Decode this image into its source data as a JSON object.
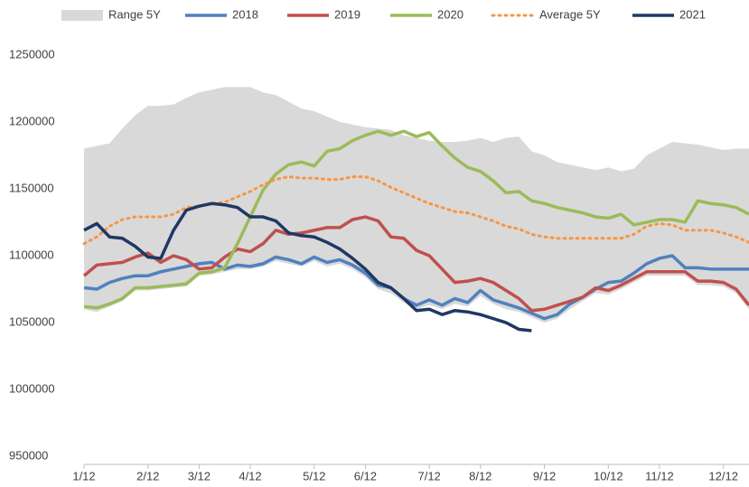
{
  "chart_data": {
    "type": "line",
    "categories": [
      "1/12",
      null,
      null,
      null,
      null,
      "2/12",
      null,
      null,
      null,
      "3/12",
      null,
      null,
      null,
      "4/12",
      null,
      null,
      null,
      null,
      "5/12",
      null,
      null,
      null,
      "6/12",
      null,
      null,
      null,
      null,
      "7/12",
      null,
      null,
      null,
      "8/12",
      null,
      null,
      null,
      null,
      "9/12",
      null,
      null,
      null,
      null,
      "10/12",
      null,
      null,
      null,
      "11/12",
      null,
      null,
      null,
      null,
      "12/12",
      null,
      null
    ],
    "ylim": [
      940000,
      1260000
    ],
    "yticks": [
      950000,
      1000000,
      1050000,
      1100000,
      1150000,
      1200000,
      1250000
    ],
    "legend": "top",
    "series": [
      {
        "name": "Range 5Y",
        "kind": "area",
        "color": "#d9d9d9",
        "values": [
          1180000,
          1182000,
          1184000,
          1195000,
          1205000,
          1212000,
          1212000,
          1213000,
          1218000,
          1222000,
          1224000,
          1226000,
          1226000,
          1226000,
          1222000,
          1220000,
          1215000,
          1210000,
          1208000,
          1204000,
          1200000,
          1198000,
          1196000,
          1195000,
          1194000,
          1190000,
          1188000,
          1186000,
          1185000,
          1185000,
          1186000,
          1188000,
          1185000,
          1188000,
          1189000,
          1178000,
          1175000,
          1170000,
          1168000,
          1166000,
          1164000,
          1166000,
          1163000,
          1165000,
          1175000,
          1180000,
          1185000,
          1184000,
          1183000,
          1181000,
          1179000,
          1180000,
          1180000
        ],
        "lower": [
          1060000,
          1058000,
          1062000,
          1066000,
          1074000,
          1074000,
          1075000,
          1076000,
          1077000,
          1085000,
          1086000,
          1088000,
          1090000,
          1090000,
          1092000,
          1096000,
          1094000,
          1092000,
          1096000,
          1092000,
          1094000,
          1090000,
          1084000,
          1075000,
          1072000,
          1065000,
          1060000,
          1063000,
          1060000,
          1064000,
          1062000,
          1070000,
          1064000,
          1060000,
          1058000,
          1054000,
          1050000,
          1053000,
          1060000,
          1066000,
          1072000,
          1071000,
          1075000,
          1080000,
          1085000,
          1085000,
          1085000,
          1085000,
          1078000,
          1078000,
          1077000,
          1072000,
          1060000
        ]
      },
      {
        "name": "2018",
        "kind": "line",
        "color": "#4f81bd",
        "values": [
          1076000,
          1075000,
          1080000,
          1083000,
          1085000,
          1085000,
          1088000,
          1090000,
          1092000,
          1094000,
          1095000,
          1090000,
          1093000,
          1092000,
          1094000,
          1099000,
          1097000,
          1094000,
          1099000,
          1095000,
          1097000,
          1093000,
          1087000,
          1078000,
          1076000,
          1068000,
          1063000,
          1067000,
          1063000,
          1068000,
          1065000,
          1074000,
          1067000,
          1064000,
          1061000,
          1057000,
          1053000,
          1056000,
          1064000,
          1069000,
          1075000,
          1080000,
          1081000,
          1087000,
          1094000,
          1098000,
          1100000,
          1091000,
          1091000,
          1090000,
          1090000,
          1090000,
          1090000
        ]
      },
      {
        "name": "2019",
        "kind": "line",
        "color": "#c0504d",
        "values": [
          1085000,
          1093000,
          1094000,
          1095000,
          1099000,
          1102000,
          1095000,
          1100000,
          1097000,
          1090000,
          1091000,
          1099000,
          1105000,
          1103000,
          1109000,
          1119000,
          1116000,
          1117000,
          1119000,
          1121000,
          1121000,
          1127000,
          1129000,
          1126000,
          1114000,
          1113000,
          1104000,
          1100000,
          1090000,
          1080000,
          1081000,
          1083000,
          1080000,
          1074000,
          1068000,
          1059000,
          1060000,
          1063000,
          1066000,
          1069000,
          1076000,
          1074000,
          1078000,
          1083000,
          1088000,
          1088000,
          1088000,
          1088000,
          1081000,
          1081000,
          1080000,
          1075000,
          1063000
        ]
      },
      {
        "name": "2020",
        "kind": "line",
        "color": "#9bbb59",
        "values": [
          1062000,
          1061000,
          1064000,
          1068000,
          1076000,
          1076000,
          1077000,
          1078000,
          1079000,
          1087000,
          1088000,
          1091000,
          1109000,
          1129000,
          1149000,
          1161000,
          1168000,
          1170000,
          1167000,
          1178000,
          1180000,
          1186000,
          1190000,
          1193000,
          1190000,
          1193000,
          1189000,
          1192000,
          1182000,
          1173000,
          1166000,
          1163000,
          1156000,
          1147000,
          1148000,
          1141000,
          1139000,
          1136000,
          1134000,
          1132000,
          1129000,
          1128000,
          1131000,
          1123000,
          1125000,
          1127000,
          1127000,
          1125000,
          1141000,
          1139000,
          1138000,
          1136000,
          1131000
        ]
      },
      {
        "name": "Average 5Y",
        "kind": "line",
        "dash": "dotted",
        "color": "#f79646",
        "values": [
          1109000,
          1114000,
          1122000,
          1127000,
          1129000,
          1129000,
          1129000,
          1131000,
          1136000,
          1137000,
          1139000,
          1140000,
          1144000,
          1148000,
          1153000,
          1157000,
          1159000,
          1158000,
          1158000,
          1157000,
          1157000,
          1159000,
          1159000,
          1156000,
          1151000,
          1147000,
          1143000,
          1139000,
          1136000,
          1133000,
          1132000,
          1129000,
          1126000,
          1122000,
          1120000,
          1116000,
          1114000,
          1113000,
          1113000,
          1113000,
          1113000,
          1113000,
          1113000,
          1116000,
          1122000,
          1124000,
          1123000,
          1119000,
          1119000,
          1119000,
          1117000,
          1114000,
          1110000
        ]
      },
      {
        "name": "2021",
        "kind": "line",
        "color": "#1f3864",
        "values": [
          1119000,
          1124000,
          1114000,
          1113000,
          1107000,
          1099000,
          1098000,
          1119000,
          1134000,
          1137000,
          1139000,
          1138000,
          1136000,
          1129000,
          1129000,
          1126000,
          1117000,
          1115000,
          1114000,
          1110000,
          1105000,
          1098000,
          1090000,
          1080000,
          1076000,
          1068000,
          1059000,
          1060000,
          1056000,
          1059000,
          1058000,
          1056000,
          1053000,
          1050000,
          1045000,
          1044000,
          null,
          null,
          null,
          null,
          null,
          null,
          null,
          null,
          null,
          null,
          null,
          null,
          null,
          null,
          null,
          null,
          null
        ]
      }
    ]
  }
}
